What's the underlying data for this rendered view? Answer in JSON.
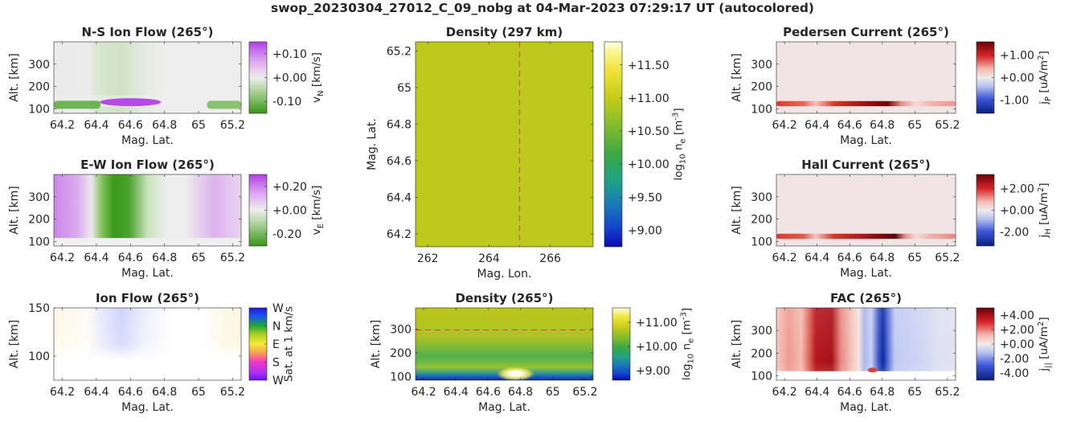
{
  "title": "swop_20230304_27012_C_09_nobg at 04-Mar-2023 07:29:17 UT (autocolored)",
  "chart_data": [
    {
      "id": "ns",
      "type": "heatmap",
      "title": "N-S Ion Flow (265°)",
      "xlabel": "Mag. Lat.",
      "ylabel": "Alt. [km]",
      "xlim": [
        64.15,
        65.25
      ],
      "ylim": [
        80,
        400
      ],
      "xticks": [
        64.2,
        64.4,
        64.6,
        64.8,
        65,
        65.2
      ],
      "xticklabels": [
        "64.2",
        "64.4",
        "64.6",
        "64.8",
        "65",
        "65.2"
      ],
      "yticks": [
        100,
        200,
        300
      ],
      "yticklabels": [
        "100",
        "200",
        "300"
      ],
      "colorbar": {
        "label_main": "v",
        "label_sub": "N",
        "label_rest": " [km/s]",
        "colormap": "purple-white-green",
        "range": [
          -0.15,
          0.15
        ],
        "ticks": [
          0.1,
          0.0,
          -0.1
        ],
        "ticklabels": [
          "+0.10",
          "+0.00",
          "-0.10"
        ]
      }
    },
    {
      "id": "ew",
      "type": "heatmap",
      "title": "E-W Ion Flow (265°)",
      "xlabel": "Mag. Lat.",
      "ylabel": "Alt. [km]",
      "xlim": [
        64.15,
        65.25
      ],
      "ylim": [
        80,
        400
      ],
      "xticks": [
        64.2,
        64.4,
        64.6,
        64.8,
        65,
        65.2
      ],
      "xticklabels": [
        "64.2",
        "64.4",
        "64.6",
        "64.8",
        "65",
        "65.2"
      ],
      "yticks": [
        100,
        200,
        300
      ],
      "yticklabels": [
        "100",
        "200",
        "300"
      ],
      "colorbar": {
        "label_main": "v",
        "label_sub": "E",
        "label_rest": " [km/s]",
        "colormap": "purple-white-green",
        "range": [
          -0.3,
          0.3
        ],
        "ticks": [
          0.2,
          0.0,
          -0.2
        ],
        "ticklabels": [
          "+0.20",
          "+0.00",
          "-0.20"
        ]
      }
    },
    {
      "id": "ionflow",
      "type": "heatmap",
      "title": "Ion Flow (265°)",
      "xlabel": "Mag. Lat.",
      "ylabel": "Alt. [km]",
      "xlim": [
        64.15,
        65.25
      ],
      "ylim": [
        75,
        150
      ],
      "xticks": [
        64.2,
        64.4,
        64.6,
        64.8,
        65,
        65.2
      ],
      "xticklabels": [
        "64.2",
        "64.4",
        "64.6",
        "64.8",
        "65",
        "65.2"
      ],
      "yticks": [
        100,
        150
      ],
      "yticklabels": [
        "100",
        "150"
      ],
      "colorbar": {
        "label_main": "Sat. at 1 km/s",
        "label_sub": "",
        "label_rest": "",
        "colormap": "direction-wheel",
        "range": [
          0,
          4
        ],
        "ticks": [
          4,
          3,
          2,
          1,
          0
        ],
        "ticklabels": [
          "W",
          "N",
          "E",
          "S",
          "W"
        ]
      }
    },
    {
      "id": "dens_map",
      "type": "heatmap",
      "title": "Density (297 km)",
      "xlabel": "Mag. Lon.",
      "ylabel": "Mag. Lat.",
      "xlim": [
        261.6,
        267.4
      ],
      "ylim": [
        64.13,
        65.25
      ],
      "xticks": [
        262,
        264,
        266
      ],
      "xticklabels": [
        "262",
        "264",
        "266"
      ],
      "yticks": [
        64.2,
        64.4,
        64.6,
        64.8,
        65,
        65.2
      ],
      "yticklabels": [
        "64.2",
        "64.4",
        "64.6",
        "64.8",
        "65",
        "65.2"
      ],
      "reference_line": {
        "axis": "x",
        "value": 265
      },
      "colorbar": {
        "label_main": "log",
        "label_sub": "10",
        "label_rest": " n",
        "label_sub2": "e",
        "label_unit": " [m",
        "label_sup": "-3",
        "label_end": "]",
        "colormap": "parula",
        "range": [
          8.75,
          11.85
        ],
        "ticks": [
          11.5,
          11.0,
          10.5,
          10.0,
          9.5,
          9.0
        ],
        "ticklabels": [
          "+11.50",
          "+11.00",
          "+10.50",
          "+10.00",
          "+9.50",
          "+9.00"
        ]
      }
    },
    {
      "id": "dens_alt",
      "type": "heatmap",
      "title": "Density (265°)",
      "xlabel": "Mag. Lat.",
      "ylabel": "Alt. [km]",
      "xlim": [
        64.15,
        65.25
      ],
      "ylim": [
        85,
        390
      ],
      "xticks": [
        64.2,
        64.4,
        64.6,
        64.8,
        65,
        65.2
      ],
      "xticklabels": [
        "64.2",
        "64.4",
        "64.6",
        "64.8",
        "65",
        "65.2"
      ],
      "yticks": [
        100,
        200,
        300
      ],
      "yticklabels": [
        "100",
        "200",
        "300"
      ],
      "reference_line": {
        "axis": "y",
        "value": 297
      },
      "colorbar": {
        "label_main": "log",
        "label_sub": "10",
        "label_rest": " n",
        "label_sub2": "e",
        "label_unit": " [m",
        "label_sup": "-3",
        "label_end": "]",
        "colormap": "parula",
        "range": [
          8.6,
          11.6
        ],
        "ticks": [
          11.0,
          10.0,
          9.0
        ],
        "ticklabels": [
          "+11.00",
          "+10.00",
          "+9.00"
        ]
      }
    },
    {
      "id": "ped",
      "type": "heatmap",
      "title": "Pedersen Current (265°)",
      "xlabel": "Mag. Lat.",
      "ylabel": "Alt. [km]",
      "xlim": [
        64.15,
        65.25
      ],
      "ylim": [
        80,
        400
      ],
      "xticks": [
        64.2,
        64.4,
        64.6,
        64.8,
        65,
        65.2
      ],
      "xticklabels": [
        "64.2",
        "64.4",
        "64.6",
        "64.8",
        "65",
        "65.2"
      ],
      "yticks": [
        100,
        200,
        300
      ],
      "yticklabels": [
        "100",
        "200",
        "300"
      ],
      "colorbar": {
        "label_main": "j",
        "label_sub": "P",
        "label_rest": " [uA/m",
        "label_sup": "2",
        "label_end": "]",
        "colormap": "blue-white-red",
        "range": [
          -1.6,
          1.6
        ],
        "ticks": [
          1.0,
          0.0,
          -1.0
        ],
        "ticklabels": [
          "+1.00",
          "+0.00",
          "-1.00"
        ]
      }
    },
    {
      "id": "hall",
      "type": "heatmap",
      "title": "Hall Current (265°)",
      "xlabel": "Mag. Lat.",
      "ylabel": "Alt. [km]",
      "xlim": [
        64.15,
        65.25
      ],
      "ylim": [
        80,
        400
      ],
      "xticks": [
        64.2,
        64.4,
        64.6,
        64.8,
        65,
        65.2
      ],
      "xticklabels": [
        "64.2",
        "64.4",
        "64.6",
        "64.8",
        "65",
        "65.2"
      ],
      "yticks": [
        100,
        200,
        300
      ],
      "yticklabels": [
        "100",
        "200",
        "300"
      ],
      "colorbar": {
        "label_main": "j",
        "label_sub": "H",
        "label_rest": " [uA/m",
        "label_sup": "2",
        "label_end": "]",
        "colormap": "blue-white-red",
        "range": [
          -3.3,
          3.3
        ],
        "ticks": [
          2.0,
          0.0,
          -2.0
        ],
        "ticklabels": [
          "+2.00",
          "+0.00",
          "-2.00"
        ]
      }
    },
    {
      "id": "fac",
      "type": "heatmap",
      "title": "FAC (265°)",
      "xlabel": "Mag. Lat.",
      "ylabel": "Alt. [km]",
      "xlim": [
        64.15,
        65.25
      ],
      "ylim": [
        80,
        400
      ],
      "xticks": [
        64.2,
        64.4,
        64.6,
        64.8,
        65,
        65.2
      ],
      "xticklabels": [
        "64.2",
        "64.4",
        "64.6",
        "64.8",
        "65",
        "65.2"
      ],
      "yticks": [
        100,
        200,
        300
      ],
      "yticklabels": [
        "100",
        "200",
        "300"
      ],
      "colorbar": {
        "label_main": "j",
        "label_sub": "||",
        "label_rest": " [uA/m",
        "label_sup": "2",
        "label_end": "]",
        "colormap": "blue-white-red",
        "range": [
          -5,
          5
        ],
        "ticks": [
          4.0,
          2.0,
          0.0,
          -2.0,
          -4.0
        ],
        "ticklabels": [
          "+4.00",
          "+2.00",
          "+0.00",
          "-2.00",
          "-4.00"
        ]
      }
    }
  ]
}
